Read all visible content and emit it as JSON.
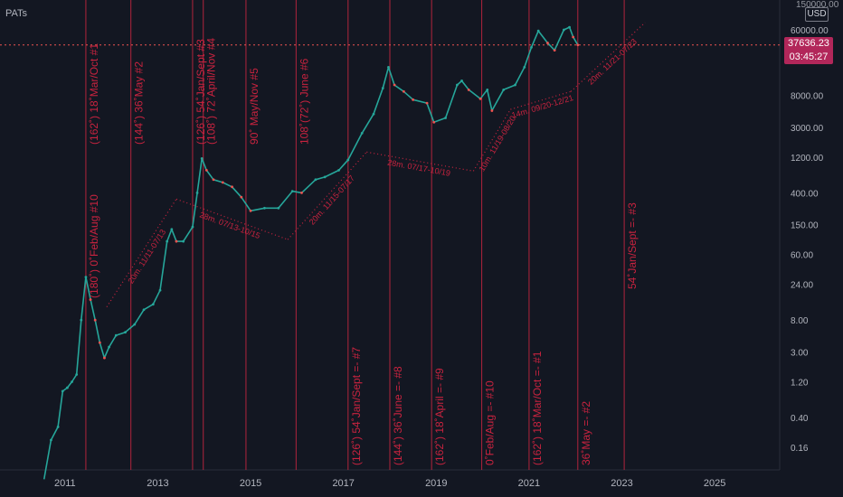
{
  "header": {
    "title": "PATs",
    "currency": "USD",
    "top_value": "150000.00"
  },
  "price_label": {
    "price": "37636.23",
    "timer": "03:45:27"
  },
  "colors": {
    "background": "#131722",
    "candle_up": "#26a69a",
    "candle_down": "#ef5350",
    "annotation": "#c8233f",
    "cycle_line": "#b0243c",
    "axis_text": "#b2b5be",
    "current_price_bg": "#b2275a"
  },
  "chart_data": {
    "type": "line",
    "title": "",
    "xlabel": "",
    "ylabel": "",
    "x_unit": "year",
    "xlim": [
      2009.6,
      2026.4
    ],
    "y_scale": "log",
    "ylim": [
      0.08,
      150000
    ],
    "x_ticks": [
      "2011",
      "2013",
      "2015",
      "2017",
      "2019",
      "2021",
      "2023",
      "2025"
    ],
    "y_ticks": [
      "60000.00",
      "8000.00",
      "3000.00",
      "1200.00",
      "400.00",
      "150.00",
      "60.00",
      "24.00",
      "8.00",
      "3.00",
      "1.20",
      "0.40",
      "0.16"
    ],
    "grid": false,
    "series": [
      {
        "values": [
          [
            2010.55,
            0.06
          ],
          [
            2010.7,
            0.2
          ],
          [
            2010.85,
            0.3
          ],
          [
            2010.95,
            0.9
          ],
          [
            2011.05,
            1.0
          ],
          [
            2011.15,
            1.2
          ],
          [
            2011.25,
            1.5
          ],
          [
            2011.35,
            8.0
          ],
          [
            2011.45,
            30.0
          ],
          [
            2011.55,
            15.0
          ],
          [
            2011.65,
            8.0
          ],
          [
            2011.75,
            4.0
          ],
          [
            2011.85,
            2.5
          ],
          [
            2011.95,
            3.5
          ],
          [
            2012.1,
            5.0
          ],
          [
            2012.3,
            5.5
          ],
          [
            2012.5,
            7.0
          ],
          [
            2012.7,
            11.0
          ],
          [
            2012.9,
            13.0
          ],
          [
            2013.05,
            20.0
          ],
          [
            2013.2,
            90.0
          ],
          [
            2013.3,
            130.0
          ],
          [
            2013.4,
            90.0
          ],
          [
            2013.55,
            90.0
          ],
          [
            2013.75,
            140.0
          ],
          [
            2013.85,
            400.0
          ],
          [
            2013.95,
            1150.0
          ],
          [
            2014.05,
            800.0
          ],
          [
            2014.2,
            600.0
          ],
          [
            2014.4,
            550.0
          ],
          [
            2014.6,
            480.0
          ],
          [
            2014.8,
            350.0
          ],
          [
            2015.0,
            230.0
          ],
          [
            2015.3,
            250.0
          ],
          [
            2015.6,
            250.0
          ],
          [
            2015.9,
            420.0
          ],
          [
            2016.1,
            400.0
          ],
          [
            2016.4,
            600.0
          ],
          [
            2016.6,
            650.0
          ],
          [
            2016.9,
            800.0
          ],
          [
            2017.1,
            1100.0
          ],
          [
            2017.4,
            2500.0
          ],
          [
            2017.65,
            4500.0
          ],
          [
            2017.85,
            10000.0
          ],
          [
            2017.97,
            19000.0
          ],
          [
            2018.1,
            11000.0
          ],
          [
            2018.3,
            9000.0
          ],
          [
            2018.5,
            7000.0
          ],
          [
            2018.8,
            6300.0
          ],
          [
            2018.95,
            3500.0
          ],
          [
            2019.2,
            4000.0
          ],
          [
            2019.45,
            11000.0
          ],
          [
            2019.55,
            12500.0
          ],
          [
            2019.7,
            9500.0
          ],
          [
            2019.95,
            7200.0
          ],
          [
            2020.1,
            9500.0
          ],
          [
            2020.2,
            5000.0
          ],
          [
            2020.45,
            9500.0
          ],
          [
            2020.7,
            11000.0
          ],
          [
            2020.9,
            19000.0
          ],
          [
            2021.05,
            35000.0
          ],
          [
            2021.2,
            58000.0
          ],
          [
            2021.4,
            40000.0
          ],
          [
            2021.55,
            32000.0
          ],
          [
            2021.75,
            60000.0
          ],
          [
            2021.87,
            65000.0
          ],
          [
            2021.95,
            48000.0
          ],
          [
            2022.05,
            37636.23
          ]
        ]
      }
    ],
    "vertical_lines": [
      2011.45,
      2012.42,
      2013.75,
      2013.98,
      2014.9,
      2015.98,
      2017.1,
      2018.0,
      2018.9,
      2019.98,
      2021.0,
      2022.05,
      2023.05
    ],
    "current_price": 37636.23,
    "annotations_top": [
      {
        "x": 2011.45,
        "text": "(162˚) 18˚Mar/Oct #1"
      },
      {
        "x": 2012.42,
        "text": "(144˚) 36˚May #2"
      },
      {
        "x": 2013.75,
        "text": "(126˚) 54˚Jan/Sept #3"
      },
      {
        "x": 2013.98,
        "text": "(108˚) 72˚April/Nov #4"
      },
      {
        "x": 2014.9,
        "text": "90˚ May/Nov #5"
      },
      {
        "x": 2015.98,
        "text": "108˚(72˚) June #6"
      },
      {
        "x": 2011.45,
        "text": "(180˚) 0˚Feb/Aug #10"
      }
    ],
    "annotations_bottom": [
      {
        "x": 2017.1,
        "text": "(126˚) 54˚Jan/Sept =- #7"
      },
      {
        "x": 2018.0,
        "text": "(144˚) 36˚June =- #8"
      },
      {
        "x": 2018.9,
        "text": "(162˚) 18˚April =- #9"
      },
      {
        "x": 2019.98,
        "text": "0˚Feb/Aug =- #10"
      },
      {
        "x": 2021.0,
        "text": "(162˚) 18˚Mar/Oct =- #1"
      },
      {
        "x": 2022.05,
        "text": "36˚May =- #2"
      },
      {
        "x": 2023.05,
        "text": "54˚Jan/Sept =- #3"
      }
    ],
    "trend_segments": [
      {
        "x1": 2011.9,
        "y1": 12.0,
        "x2": 2013.4,
        "y2": 330.0,
        "label": "20m. 11/11-07/13"
      },
      {
        "x1": 2013.4,
        "y1": 330.0,
        "x2": 2015.8,
        "y2": 95.0,
        "label": "28m. 07/13-10/15"
      },
      {
        "x1": 2015.8,
        "y1": 95.0,
        "x2": 2017.5,
        "y2": 1400.0,
        "label": "20m. 11/15-07/17"
      },
      {
        "x1": 2017.5,
        "y1": 1400.0,
        "x2": 2019.8,
        "y2": 780.0,
        "label": "28m. 07/17-10/19"
      },
      {
        "x1": 2019.8,
        "y1": 780.0,
        "x2": 2020.6,
        "y2": 5200.0,
        "label": "10m. 11/19-08/20"
      },
      {
        "x1": 2020.6,
        "y1": 5200.0,
        "x2": 2021.9,
        "y2": 9000.0,
        "label": "14m. 09/20-12/21"
      },
      {
        "x1": 2021.9,
        "y1": 9000.0,
        "x2": 2023.5,
        "y2": 75000.0,
        "label": "20m. 11/21-07/23"
      }
    ]
  }
}
